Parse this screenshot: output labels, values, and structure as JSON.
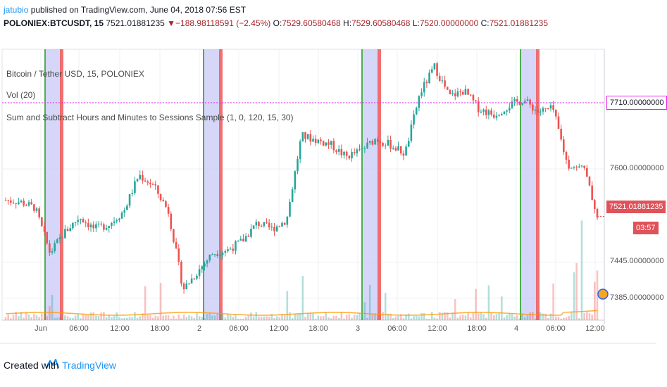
{
  "header": {
    "author": "jatubio",
    "published": " published on TradingView.com, June 04, 2018 07:56 EST"
  },
  "symbol": {
    "name": "POLONIEX:BTCUSDT, 15",
    "last": "7521.01881235",
    "change_arrow": "▼",
    "change": "−188.98118591 (−2.45%)",
    "o_label": "O:",
    "o_value": "7529.60580468",
    "h_label": "H:",
    "h_value": "7529.60580468",
    "l_label": "L:",
    "l_value": "7520.00000000",
    "c_label": "C:",
    "c_value": "7521.01881235"
  },
  "legends": {
    "main": "Bitcoin / Tether USD, 15, POLONIEX",
    "vol": "Vol (20)",
    "indicator": "Sum and Subtract Hours and Minutes to Sessions Sample (1, 0, 120, 15, 30)"
  },
  "tags": {
    "hline": "7710.00000000",
    "last": "7521.01881235",
    "countdown": "03:57"
  },
  "footer": {
    "created": "Created with",
    "brand": "TradingView"
  },
  "colors": {
    "up": "#26a69a",
    "down": "#ef5350",
    "hline": "#e91ee9",
    "session_blue": "#c8c8f5",
    "session_green": "#4caf50",
    "session_red": "#f06060",
    "last_tag": "#e0525a"
  },
  "chart_data": {
    "type": "candlestick",
    "x_tick_labels": [
      "Jun",
      "06:00",
      "12:00",
      "18:00",
      "2",
      "06:00",
      "12:00",
      "18:00",
      "3",
      "06:00",
      "12:00",
      "18:00",
      "4",
      "06:00",
      "12:00"
    ],
    "y_tick_labels": [
      "7710.00000000",
      "7600.00000000",
      "7445.00000000",
      "7385.00000000"
    ],
    "ylim": [
      7345,
      7795
    ],
    "horizontal_line": 7710,
    "last_price": 7521.01881235,
    "price_path": [
      {
        "t": 0,
        "p": 7548
      },
      {
        "t": 1,
        "p": 7545
      },
      {
        "t": 2,
        "p": 7535
      },
      {
        "t": 3,
        "p": 7460
      },
      {
        "t": 4,
        "p": 7495
      },
      {
        "t": 5,
        "p": 7520
      },
      {
        "t": 6,
        "p": 7500
      },
      {
        "t": 7,
        "p": 7508
      },
      {
        "t": 8,
        "p": 7530
      },
      {
        "t": 9,
        "p": 7590
      },
      {
        "t": 10,
        "p": 7572
      },
      {
        "t": 11,
        "p": 7530
      },
      {
        "t": 12,
        "p": 7400
      },
      {
        "t": 13,
        "p": 7430
      },
      {
        "t": 14,
        "p": 7460
      },
      {
        "t": 15,
        "p": 7465
      },
      {
        "t": 16,
        "p": 7480
      },
      {
        "t": 17,
        "p": 7510
      },
      {
        "t": 18,
        "p": 7500
      },
      {
        "t": 19,
        "p": 7515
      },
      {
        "t": 20,
        "p": 7655
      },
      {
        "t": 21,
        "p": 7648
      },
      {
        "t": 22,
        "p": 7640
      },
      {
        "t": 23,
        "p": 7620
      },
      {
        "t": 24,
        "p": 7630
      },
      {
        "t": 25,
        "p": 7650
      },
      {
        "t": 26,
        "p": 7640
      },
      {
        "t": 27,
        "p": 7625
      },
      {
        "t": 28,
        "p": 7725
      },
      {
        "t": 29,
        "p": 7770
      },
      {
        "t": 30,
        "p": 7720
      },
      {
        "t": 31,
        "p": 7730
      },
      {
        "t": 32,
        "p": 7700
      },
      {
        "t": 33,
        "p": 7690
      },
      {
        "t": 34,
        "p": 7705
      },
      {
        "t": 35,
        "p": 7715
      },
      {
        "t": 36,
        "p": 7695
      },
      {
        "t": 37,
        "p": 7700
      },
      {
        "t": 38,
        "p": 7605
      },
      {
        "t": 39,
        "p": 7610
      },
      {
        "t": 40,
        "p": 7521
      }
    ]
  }
}
